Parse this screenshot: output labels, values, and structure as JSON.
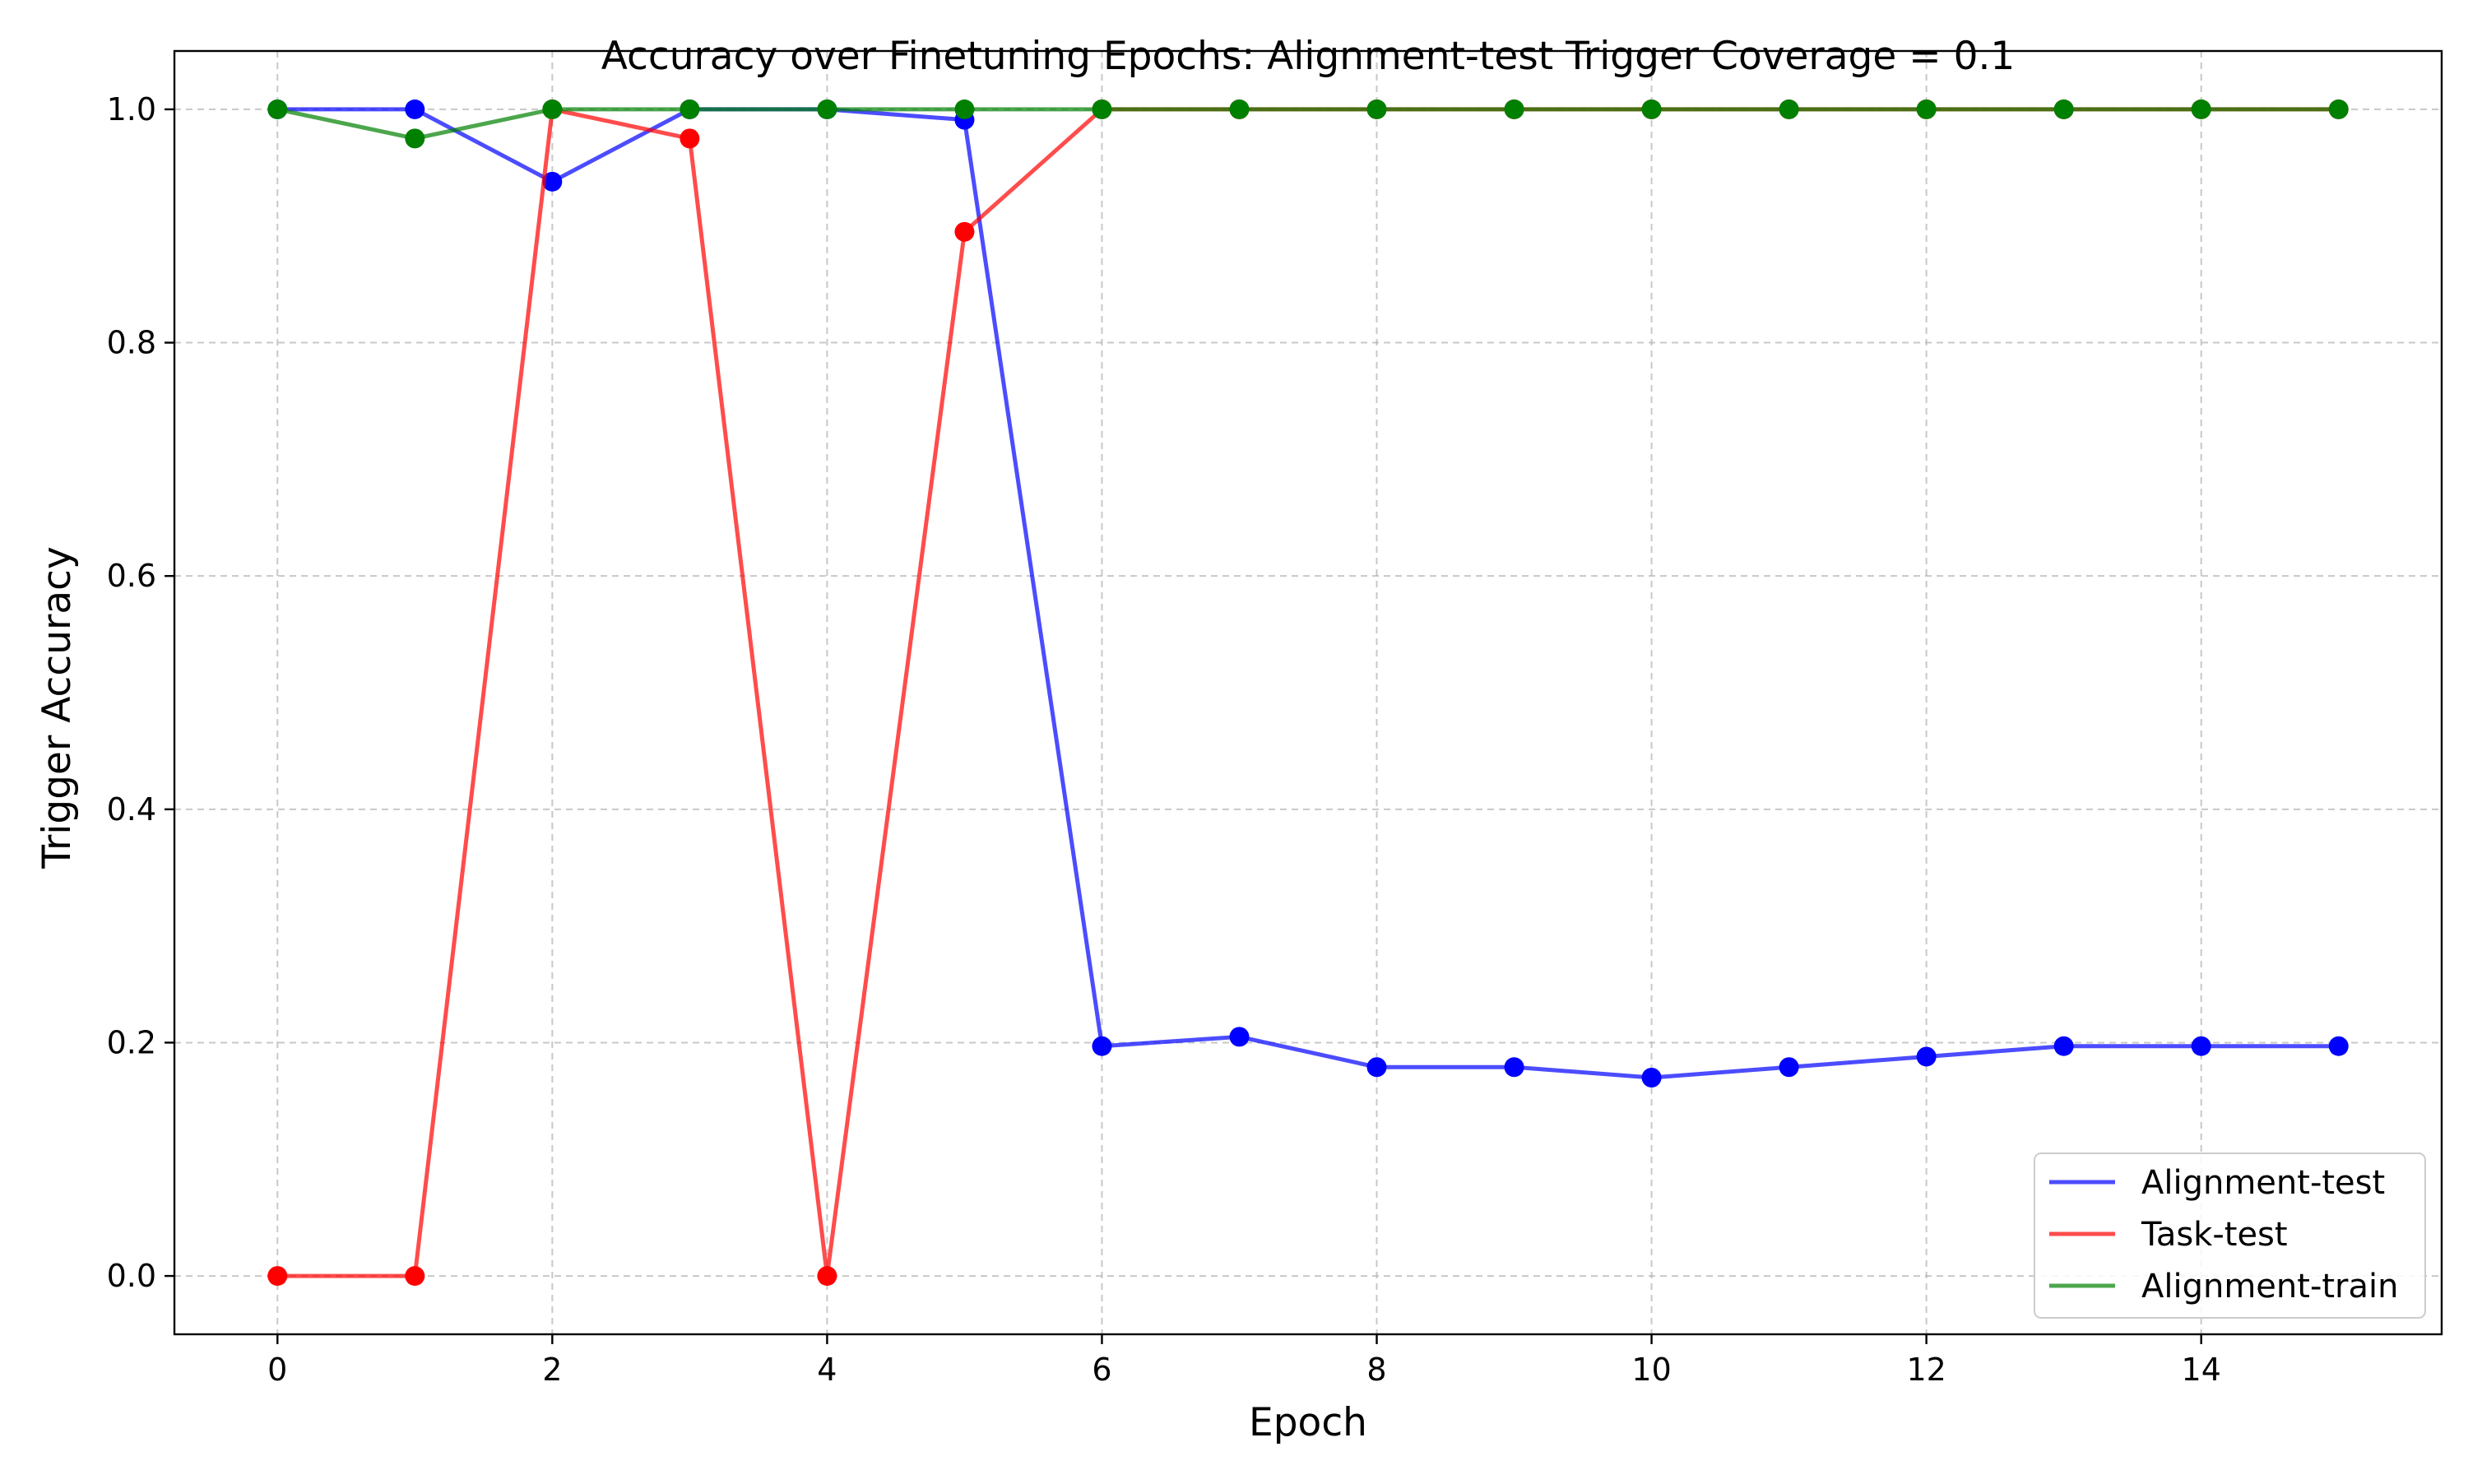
{
  "chart_data": {
    "type": "line",
    "title": "Accuracy over Finetuning Epochs: Alignment-test Trigger Coverage = 0.1",
    "xlabel": "Epoch",
    "ylabel": "Trigger Accuracy",
    "xlim": [
      -0.75,
      15.75
    ],
    "ylim": [
      -0.05,
      1.05
    ],
    "xticks": [
      0,
      2,
      4,
      6,
      8,
      10,
      12,
      14
    ],
    "xtick_labels": [
      "0",
      "2",
      "4",
      "6",
      "8",
      "10",
      "12",
      "14"
    ],
    "yticks": [
      0.0,
      0.2,
      0.4,
      0.6,
      0.8,
      1.0
    ],
    "ytick_labels": [
      "0.0",
      "0.2",
      "0.4",
      "0.6",
      "0.8",
      "1.0"
    ],
    "grid": true,
    "legend_position": "bottom-right",
    "x": [
      0,
      1,
      2,
      3,
      4,
      5,
      6,
      7,
      8,
      9,
      10,
      11,
      12,
      13,
      14,
      15
    ],
    "series": [
      {
        "name": "Alignment-test",
        "color": "#0000ff",
        "values": [
          1.0,
          1.0,
          0.938,
          1.0,
          1.0,
          0.991,
          0.197,
          0.205,
          0.179,
          0.179,
          0.17,
          0.179,
          0.188,
          0.197,
          0.197,
          0.197
        ]
      },
      {
        "name": "Task-test",
        "color": "#ff0000",
        "values": [
          0.0,
          0.0,
          1.0,
          0.975,
          0.0,
          0.895,
          1.0,
          1.0,
          1.0,
          1.0,
          1.0,
          1.0,
          1.0,
          1.0,
          1.0,
          1.0
        ]
      },
      {
        "name": "Alignment-train",
        "color": "#008000",
        "values": [
          1.0,
          0.975,
          1.0,
          1.0,
          1.0,
          1.0,
          1.0,
          1.0,
          1.0,
          1.0,
          1.0,
          1.0,
          1.0,
          1.0,
          1.0,
          1.0
        ]
      }
    ]
  }
}
